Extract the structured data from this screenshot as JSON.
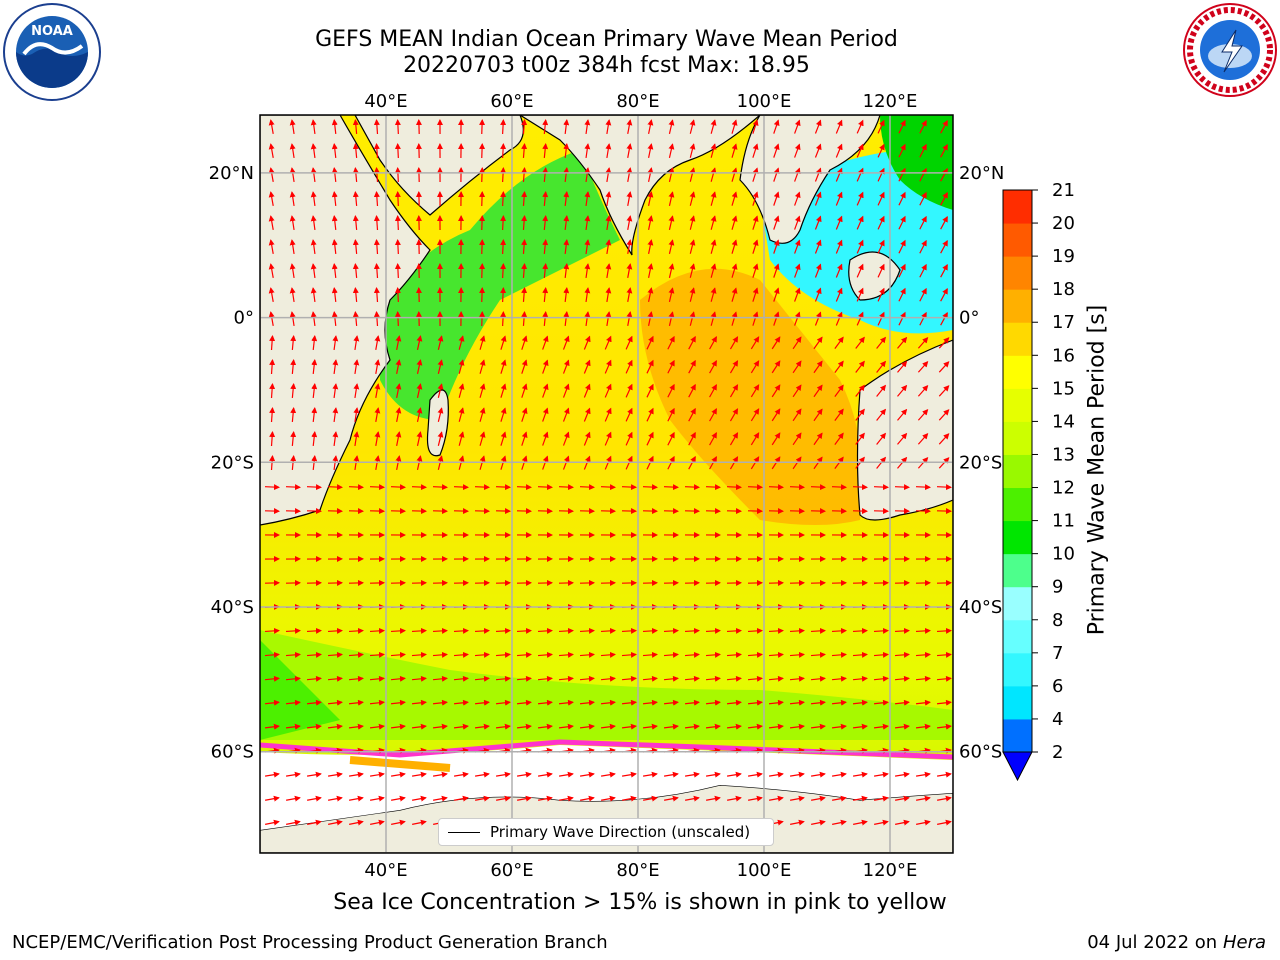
{
  "header": {
    "title_line1": "GEFS MEAN Indian Ocean Primary Wave Mean Period",
    "title_line2": "20220703 t00z 384h fcst   Max: 18.95"
  },
  "map": {
    "lon_range": [
      20,
      130
    ],
    "lat_range": [
      -74,
      28
    ],
    "top_lon_labels": [
      "40°E",
      "60°E",
      "80°E",
      "100°E",
      "120°E"
    ],
    "bottom_lon_labels": [
      "40°E",
      "60°E",
      "80°E",
      "100°E",
      "120°E"
    ],
    "left_lat_labels": [
      "20°N",
      "0°",
      "20°S",
      "40°S",
      "60°S"
    ],
    "right_lat_labels": [
      "20°N",
      "0°",
      "20°S",
      "40°S",
      "60°S"
    ],
    "grid": true,
    "land_color": "#efeddd",
    "vector_color": "#ff0000",
    "vector_field": "primary wave direction (red arrows)"
  },
  "legend": {
    "label": "Primary Wave Direction (unscaled)",
    "placement": "bottom-center"
  },
  "colorbar": {
    "label": "Primary Wave Mean Period [s]",
    "tick_labels": [
      "2",
      "4",
      "6",
      "7",
      "8",
      "9",
      "10",
      "11",
      "12",
      "13",
      "14",
      "15",
      "16",
      "17",
      "18",
      "19",
      "20",
      "21"
    ],
    "levels": [
      2,
      4,
      6,
      7,
      8,
      9,
      10,
      11,
      12,
      13,
      14,
      15,
      16,
      17,
      18,
      19,
      20,
      21
    ],
    "colors": [
      "#0070ff",
      "#00e6ff",
      "#33f7ff",
      "#66ffff",
      "#99ffff",
      "#4dff8c",
      "#00e600",
      "#4cf000",
      "#99f900",
      "#ccff00",
      "#e6ff00",
      "#ffff00",
      "#ffd900",
      "#ffb000",
      "#ff8500",
      "#ff5a00",
      "#ff2d00"
    ],
    "under_color": "#0000ff"
  },
  "footer": {
    "subtitle": "Sea Ice Concentration > 15% is shown in pink to yellow",
    "credit": "NCEP/EMC/Verification Post Processing Product Generation Branch",
    "date": "04 Jul 2022 on ",
    "machine": "Hera"
  },
  "logos": {
    "noaa_text": "NOAA",
    "nws_text": "NATIONAL WEATHER SERVICE"
  }
}
